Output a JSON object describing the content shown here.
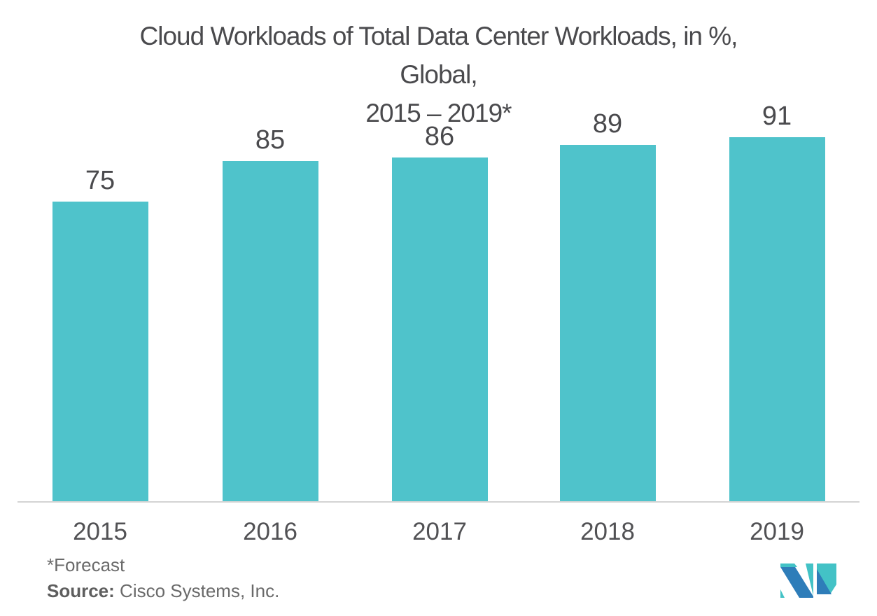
{
  "title_lines": [
    "Cloud Workloads of Total Data Center Workloads, in %,",
    "Global,",
    "2015 – 2019*"
  ],
  "footnotes": {
    "forecast": "*Forecast",
    "source_label": "Source:",
    "source_text": " Cisco Systems, Inc."
  },
  "colors": {
    "bar": "#4fc3cb",
    "title_text": "#4a4a4d",
    "value_label_text": "#4a4a4d",
    "tick_label_text": "#515154",
    "footnote_text": "#6a6a6a",
    "axis_line": "#d4d4d4",
    "background": "#ffffff",
    "logo_teal": "#43c2c6",
    "logo_blue": "#2e7db9"
  },
  "logo": {
    "name": "mordor-intelligence-logo"
  },
  "chart_data": {
    "type": "bar",
    "categories": [
      "2015",
      "2016",
      "2017",
      "2018",
      "2019"
    ],
    "values": [
      75,
      85,
      86,
      89,
      91
    ],
    "title": "Cloud Workloads of Total Data Center Workloads, in %, Global, 2015 – 2019*",
    "xlabel": "",
    "ylabel": "",
    "ylim": [
      0,
      125
    ],
    "grid": false,
    "legend": false,
    "value_labels_shown": true,
    "annotations": [
      "*Forecast",
      "Source: Cisco Systems, Inc."
    ]
  }
}
